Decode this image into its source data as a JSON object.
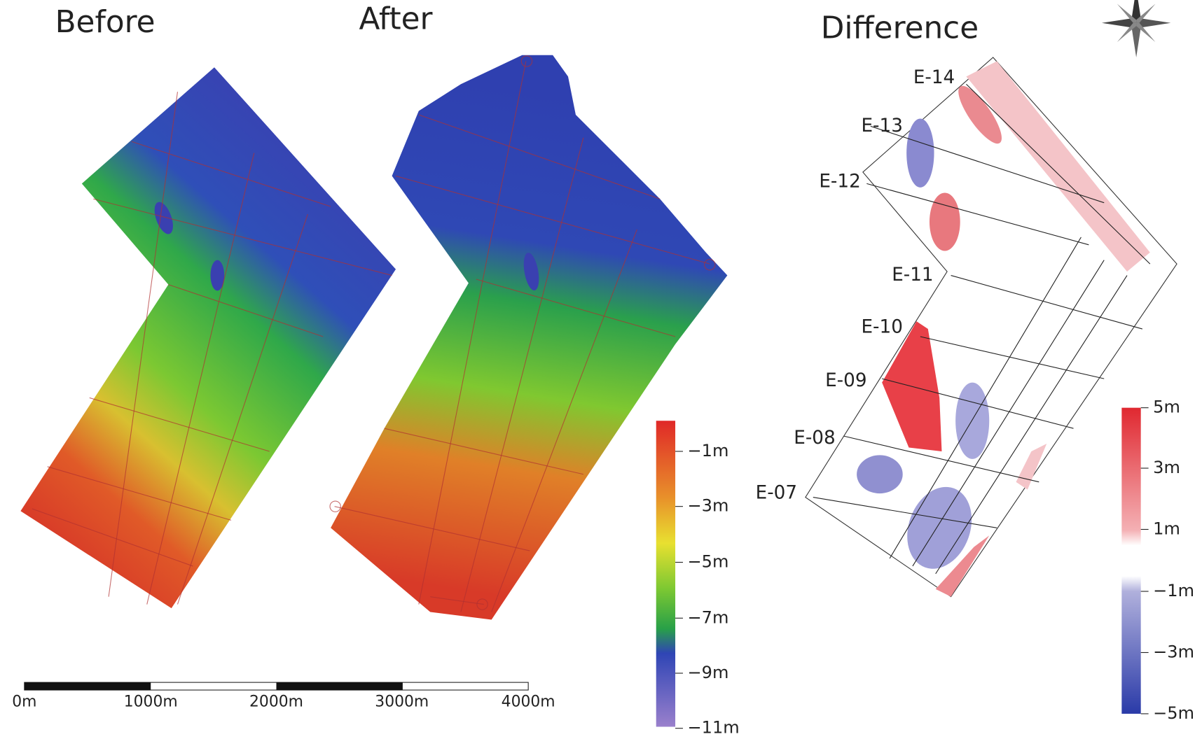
{
  "titles": {
    "before": "Before",
    "after": "After",
    "difference": "Difference"
  },
  "depth_legend": {
    "labels": [
      "−1m",
      "−3m",
      "−5m",
      "−7m",
      "−9m",
      "−11m"
    ]
  },
  "difference_legend": {
    "labels": [
      "5m",
      "3m",
      "1m",
      "−1m",
      "−3m",
      "−5m"
    ]
  },
  "scale_bar": {
    "labels": [
      "0m",
      "1000m",
      "2000m",
      "3000m",
      "4000m"
    ]
  },
  "survey_lines": {
    "labels": [
      "E-14",
      "E-13",
      "E-12",
      "E-11",
      "E-10",
      "E-09",
      "E-08",
      "E-07"
    ]
  }
}
